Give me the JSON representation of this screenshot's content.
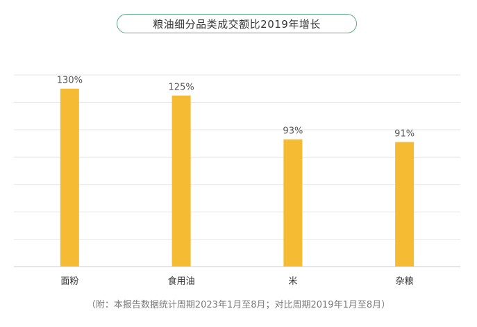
{
  "chart_data": {
    "type": "bar",
    "title": "粮油细分品类成交额比2019年增长",
    "categories": [
      "面粉",
      "食用油",
      "米",
      "杂粮"
    ],
    "values": [
      130,
      125,
      93,
      91
    ],
    "value_labels": [
      "130%",
      "125%",
      "93%",
      "91%"
    ],
    "ylim": [
      0,
      140
    ],
    "grid": true,
    "bar_color": "#f5bb32",
    "grid_color": "#e6e6e6",
    "axis_color": "#cccccc",
    "title_border_color": "#5aa884"
  },
  "footnote": "（附：本报告数据统计周期2023年1月至8月；对比周期2019年1月至8月）"
}
